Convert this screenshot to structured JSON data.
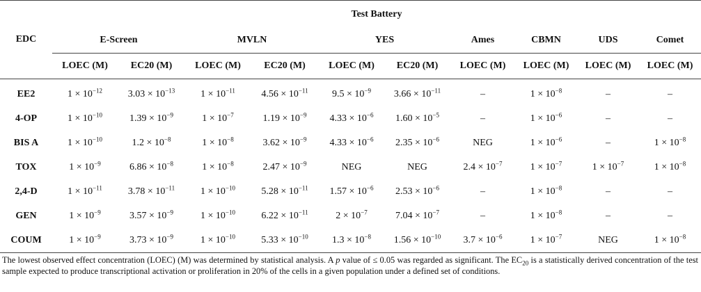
{
  "table": {
    "header": {
      "edc_label": "EDC",
      "battery_label": "Test Battery",
      "groups": [
        "E-Screen",
        "MVLN",
        "YES",
        "Ames",
        "CBMN",
        "UDS",
        "Comet"
      ],
      "subheaders": [
        "LOEC (M)",
        "EC20 (M)",
        "LOEC (M)",
        "EC20 (M)",
        "LOEC (M)",
        "EC20 (M)",
        "LOEC (M)",
        "LOEC (M)",
        "LOEC (M)",
        "LOEC (M)"
      ]
    },
    "rows": [
      {
        "edc": "EE2",
        "cells": [
          [
            "1 × 10",
            "−12"
          ],
          [
            "3.03 × 10",
            "−13"
          ],
          [
            "1 × 10",
            "−11"
          ],
          [
            "4.56 × 10",
            "−11"
          ],
          [
            "9.5 × 10",
            "−9"
          ],
          [
            "3.66 × 10",
            "−11"
          ],
          [
            "–",
            ""
          ],
          [
            "1 × 10",
            "−8"
          ],
          [
            "–",
            ""
          ],
          [
            "–",
            ""
          ]
        ]
      },
      {
        "edc": "4-OP",
        "cells": [
          [
            "1 × 10",
            "−10"
          ],
          [
            "1.39 × 10",
            "−9"
          ],
          [
            "1 × 10",
            "−7"
          ],
          [
            "1.19 × 10",
            "−9"
          ],
          [
            "4.33 × 10",
            "−6"
          ],
          [
            "1.60 × 10",
            "−5"
          ],
          [
            "–",
            ""
          ],
          [
            "1 × 10",
            "−6"
          ],
          [
            "–",
            ""
          ],
          [
            "–",
            ""
          ]
        ]
      },
      {
        "edc": "BIS A",
        "cells": [
          [
            "1 × 10",
            "−10"
          ],
          [
            "1.2 × 10",
            "−8"
          ],
          [
            "1 × 10",
            "−8"
          ],
          [
            "3.62 × 10",
            "−9"
          ],
          [
            "4.33 × 10",
            "−6"
          ],
          [
            "2.35 × 10",
            "−6"
          ],
          [
            "NEG",
            ""
          ],
          [
            "1 × 10",
            "−6"
          ],
          [
            "–",
            ""
          ],
          [
            "1 × 10",
            "−8"
          ]
        ]
      },
      {
        "edc": "TOX",
        "cells": [
          [
            "1 × 10",
            "−9"
          ],
          [
            "6.86 × 10",
            "−8"
          ],
          [
            "1 × 10",
            "−8"
          ],
          [
            "2.47 × 10",
            "−9"
          ],
          [
            "NEG",
            ""
          ],
          [
            "NEG",
            ""
          ],
          [
            "2.4 × 10",
            "−7"
          ],
          [
            "1 × 10",
            "−7"
          ],
          [
            "1 × 10",
            "−7"
          ],
          [
            "1 × 10",
            "−8"
          ]
        ]
      },
      {
        "edc": "2,4-D",
        "cells": [
          [
            "1 × 10",
            "−11"
          ],
          [
            "3.78 × 10",
            "−11"
          ],
          [
            "1 × 10",
            "−10"
          ],
          [
            "5.28 × 10",
            "−11"
          ],
          [
            "1.57 × 10",
            "−6"
          ],
          [
            "2.53 × 10",
            "−6"
          ],
          [
            "–",
            ""
          ],
          [
            "1 × 10",
            "−8"
          ],
          [
            "–",
            ""
          ],
          [
            "–",
            ""
          ]
        ]
      },
      {
        "edc": "GEN",
        "cells": [
          [
            "1 × 10",
            "−9"
          ],
          [
            "3.57 × 10",
            "−9"
          ],
          [
            "1 × 10",
            "−10"
          ],
          [
            "6.22 × 10",
            "−11"
          ],
          [
            "2 × 10",
            "−7"
          ],
          [
            "7.04 × 10",
            "−7"
          ],
          [
            "–",
            ""
          ],
          [
            "1 × 10",
            "−8"
          ],
          [
            "–",
            ""
          ],
          [
            "–",
            ""
          ]
        ]
      },
      {
        "edc": "COUM",
        "cells": [
          [
            "1 × 10",
            "−9"
          ],
          [
            "3.73 × 10",
            "−9"
          ],
          [
            "1 × 10",
            "−10"
          ],
          [
            "5.33 × 10",
            "−10"
          ],
          [
            "1.3 × 10",
            "−8"
          ],
          [
            "1.56 × 10",
            "−10"
          ],
          [
            "3.7 × 10",
            "−6"
          ],
          [
            "1 × 10",
            "−7"
          ],
          [
            "NEG",
            ""
          ],
          [
            "1 × 10",
            "−8"
          ]
        ]
      }
    ]
  },
  "footnote": {
    "part1": "The lowest observed effect concentration (LOEC) (M) was determined by statistical analysis. A ",
    "p_symbol": "p",
    "part2": " value of ≤ 0.05 was regarded as significant. The EC",
    "ec_sub": "20",
    "part3": " is a statistically derived concentration of the test sample expected to produce transcriptional activation or proliferation in 20% of the cells in a given population under a defined set of conditions."
  }
}
